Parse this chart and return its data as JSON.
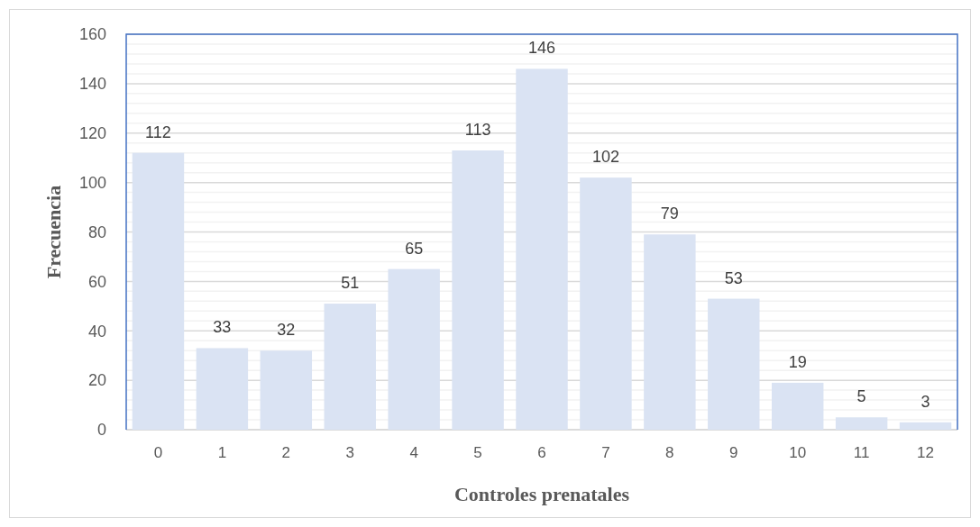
{
  "chart_data": {
    "type": "bar",
    "xlabel": "Controles prenatales",
    "ylabel": "Frecuencia",
    "categories": [
      "0",
      "1",
      "2",
      "3",
      "4",
      "5",
      "6",
      "7",
      "8",
      "9",
      "10",
      "11",
      "12"
    ],
    "values": [
      112,
      33,
      32,
      51,
      65,
      113,
      146,
      102,
      79,
      53,
      19,
      5,
      3
    ],
    "color": "#dae3f3",
    "ylim": [
      0,
      160
    ],
    "yticks": [
      0,
      {
        "value": 4,
        "label": null
      },
      {
        "value": 8,
        "label": null
      },
      {
        "value": 12,
        "label": null
      },
      {
        "value": 16,
        "label": null
      },
      20,
      {
        "value": 24,
        "label": null
      },
      {
        "value": 28,
        "label": null
      },
      {
        "value": 32,
        "label": null
      },
      {
        "value": 36,
        "label": null
      },
      40,
      {
        "value": 44,
        "label": null
      },
      {
        "value": 48,
        "label": null
      },
      {
        "value": 52,
        "label": null
      },
      {
        "value": 56,
        "label": null
      },
      60,
      {
        "value": 64,
        "label": null
      },
      {
        "value": 68,
        "label": null
      },
      {
        "value": 72,
        "label": null
      },
      {
        "value": 76,
        "label": null
      },
      80,
      {
        "value": 84,
        "label": null
      },
      {
        "value": 88,
        "label": null
      },
      {
        "value": 92,
        "label": null
      },
      {
        "value": 96,
        "label": null
      },
      100,
      {
        "value": 104,
        "label": null
      },
      {
        "value": 108,
        "label": null
      },
      {
        "value": 112,
        "label": null
      },
      {
        "value": 116,
        "label": null
      },
      120,
      {
        "value": 124,
        "label": null
      },
      {
        "value": 128,
        "label": null
      },
      {
        "value": 132,
        "label": null
      },
      {
        "value": 136,
        "label": null
      },
      140,
      {
        "value": 144,
        "label": null
      },
      {
        "value": 148,
        "label": null
      },
      {
        "value": 152,
        "label": null
      },
      {
        "value": 156,
        "label": null
      },
      160
    ],
    "grid": true,
    "data_labels": true
  }
}
